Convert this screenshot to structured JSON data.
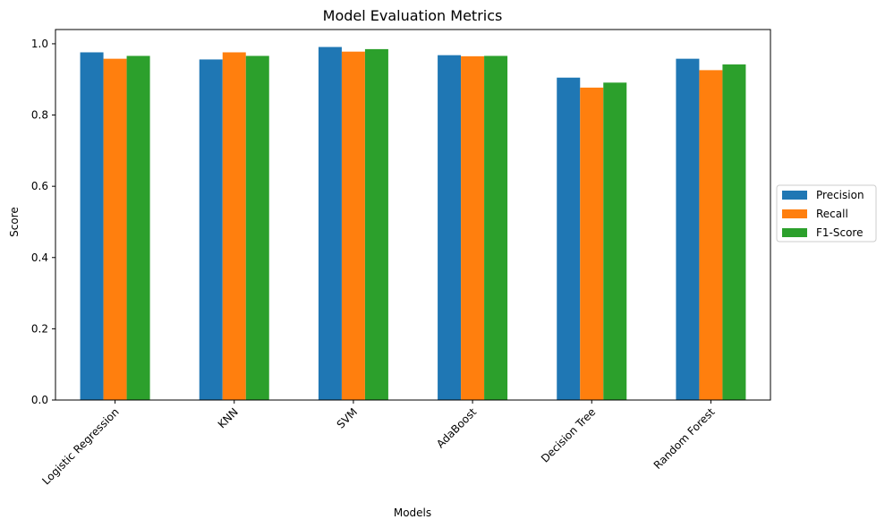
{
  "chart_data": {
    "type": "bar",
    "title": "Model Evaluation Metrics",
    "xlabel": "Models",
    "ylabel": "Score",
    "categories": [
      "Logistic Regression",
      "KNN",
      "SVM",
      "AdaBoost",
      "Decision Tree",
      "Random Forest"
    ],
    "series": [
      {
        "name": "Precision",
        "color": "#1f77b4",
        "values": [
          0.976,
          0.956,
          0.991,
          0.968,
          0.905,
          0.958
        ]
      },
      {
        "name": "Recall",
        "color": "#ff7f0e",
        "values": [
          0.958,
          0.976,
          0.978,
          0.965,
          0.877,
          0.926
        ]
      },
      {
        "name": "F1-Score",
        "color": "#2ca02c",
        "values": [
          0.966,
          0.966,
          0.985,
          0.966,
          0.891,
          0.942
        ]
      }
    ],
    "ylim": [
      0,
      1.04
    ],
    "yticks": [
      "0.0",
      "0.2",
      "0.4",
      "0.6",
      "0.8",
      "1.0"
    ],
    "grid": false,
    "legend_position": "center-right"
  }
}
